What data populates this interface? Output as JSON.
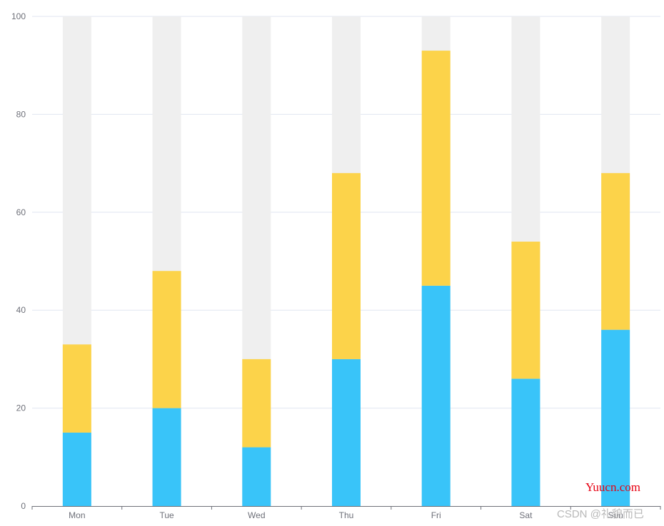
{
  "chart_data": {
    "type": "bar",
    "stacked": true,
    "categories": [
      "Mon",
      "Tue",
      "Wed",
      "Thu",
      "Fri",
      "Sat",
      "Sun"
    ],
    "series": [
      {
        "values": [
          15,
          20,
          12,
          30,
          45,
          26,
          36
        ],
        "color": "#39c4f9"
      },
      {
        "values": [
          18,
          28,
          18,
          38,
          48,
          28,
          32
        ],
        "color": "#fcd34a"
      }
    ],
    "background_bar": {
      "value": 100,
      "color": "#efefef"
    },
    "ylim": [
      0,
      100
    ],
    "yticks": [
      0,
      20,
      40,
      60,
      80,
      100
    ],
    "grid": true,
    "title": "",
    "xlabel": "",
    "ylabel": ""
  },
  "watermarks": {
    "site": "Yuucn.com",
    "blog": "CSDN @礼貌而已"
  }
}
